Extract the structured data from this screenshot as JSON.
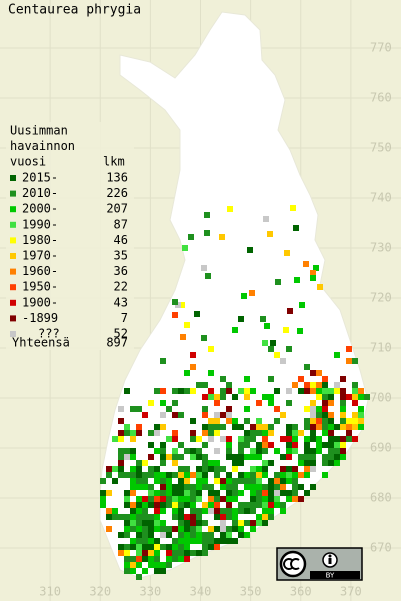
{
  "title": "Centaurea phrygia",
  "legend": {
    "header": [
      "Uusimman",
      "havainnon",
      "vuosi"
    ],
    "count_header": "lkm",
    "rows": [
      {
        "label": "2015-",
        "count": 136,
        "color": "#006400"
      },
      {
        "label": "2010-",
        "count": 226,
        "color": "#1e901e"
      },
      {
        "label": "2000-",
        "count": 207,
        "color": "#00c800"
      },
      {
        "label": "1990-",
        "count": 87,
        "color": "#40e040"
      },
      {
        "label": "1980-",
        "count": 46,
        "color": "#ffff00"
      },
      {
        "label": "1970-",
        "count": 35,
        "color": "#ffc800"
      },
      {
        "label": "1960-",
        "count": 36,
        "color": "#ff8000"
      },
      {
        "label": "1950-",
        "count": 22,
        "color": "#ff4000"
      },
      {
        "label": "1900-",
        "count": 43,
        "color": "#d00000"
      },
      {
        "label": "-1899",
        "count": 7,
        "color": "#800000"
      },
      {
        "label": "???",
        "count": 52,
        "color": "#c8c8c8"
      }
    ],
    "total_label": "Yhteensä",
    "total": 897
  },
  "xticks": [
    310,
    320,
    330,
    340,
    350,
    360,
    370
  ],
  "yticks": [
    670,
    680,
    690,
    700,
    710,
    720,
    730,
    740,
    750,
    760,
    770
  ],
  "xlim": [
    300,
    380
  ],
  "ylim": [
    659.4,
    779.6
  ],
  "license_label": "BY"
}
